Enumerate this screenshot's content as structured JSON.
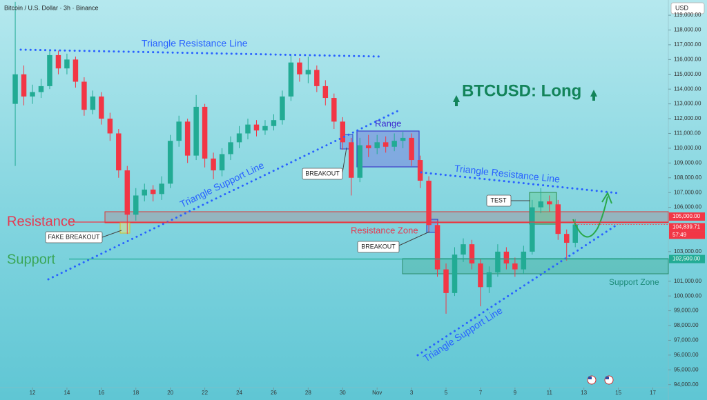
{
  "chart_data": {
    "type": "candlestick",
    "labels": {
      "header": "Bitcoin / U.S. Dollar · 3h · Binance",
      "usd": "USD",
      "title": "BTCUSD: Long",
      "resistance_line_1": "Triangle Resistance Line",
      "support_line_1": "Triangle Support Line",
      "resistance": "Resistance",
      "support": "Support",
      "fake_breakout": "FAKE BREAKOUT",
      "breakout_1": "BREAKOUT",
      "range": "Range",
      "resistance_line_2": "Triangle Resistance Line",
      "test": "TEST",
      "resistance_zone": "Resistance Zone",
      "breakout_2": "BREAKOUT",
      "support_line_2": "Triangle Support Line",
      "support_zone": "Support Zone"
    },
    "up_color": "#22ab94",
    "down_color": "#f23645",
    "grid": false,
    "xlim": [
      -1.884,
      36.9
    ],
    "ylim": [
      93800,
      120030
    ],
    "xticks": [
      {
        "value": 0,
        "label": "12"
      },
      {
        "value": 2,
        "label": "14"
      },
      {
        "value": 4,
        "label": "16"
      },
      {
        "value": 6,
        "label": "18"
      },
      {
        "value": 8,
        "label": "20"
      },
      {
        "value": 10,
        "label": "22"
      },
      {
        "value": 12,
        "label": "24"
      },
      {
        "value": 14,
        "label": "26"
      },
      {
        "value": 16,
        "label": "28"
      },
      {
        "value": 18,
        "label": "30"
      },
      {
        "value": 20,
        "label": "Nov"
      },
      {
        "value": 22,
        "label": "3"
      },
      {
        "value": 24,
        "label": "5"
      },
      {
        "value": 26,
        "label": "7"
      },
      {
        "value": 28,
        "label": "9"
      },
      {
        "value": 30,
        "label": "11"
      },
      {
        "value": 32,
        "label": "13"
      },
      {
        "value": 34,
        "label": "15"
      },
      {
        "value": 36,
        "label": "17"
      }
    ],
    "yticks": [
      {
        "value": 94000,
        "label": "94,000.00"
      },
      {
        "value": 95000,
        "label": "95,000.00"
      },
      {
        "value": 96000,
        "label": "96,000.00"
      },
      {
        "value": 97000,
        "label": "97,000.00"
      },
      {
        "value": 98000,
        "label": "98,000.00"
      },
      {
        "value": 99000,
        "label": "99,000.00"
      },
      {
        "value": 100000,
        "label": "100,000.00"
      },
      {
        "value": 101000,
        "label": "101,000.00"
      },
      {
        "value": 103000,
        "label": "103,000.00"
      },
      {
        "value": 106000,
        "label": "106,000.00"
      },
      {
        "value": 107000,
        "label": "107,000.00"
      },
      {
        "value": 108000,
        "label": "108,000.00"
      },
      {
        "value": 109000,
        "label": "109,000.00"
      },
      {
        "value": 110000,
        "label": "110,000.00"
      },
      {
        "value": 111000,
        "label": "111,000.00"
      },
      {
        "value": 112000,
        "label": "112,000.00"
      },
      {
        "value": 113000,
        "label": "113,000.00"
      },
      {
        "value": 114000,
        "label": "114,000.00"
      },
      {
        "value": 115000,
        "label": "115,000.00"
      },
      {
        "value": 116000,
        "label": "116,000.00"
      },
      {
        "value": 117000,
        "label": "117,000.00"
      },
      {
        "value": 118000,
        "label": "118,000.00"
      },
      {
        "value": 119000,
        "label": "119,000.00"
      }
    ],
    "price_tags": [
      {
        "value": 105000,
        "label": "105,000.00",
        "color": "#f23645"
      },
      {
        "value": 104839.71,
        "label": "104,839.71",
        "color": "#f23645"
      },
      {
        "value": 102500,
        "label": "102,500.00",
        "color": "#22ab94"
      }
    ],
    "countdown": "57:49",
    "x": [
      -1.0,
      -0.5,
      0,
      0.5,
      1.0,
      1.5,
      2.0,
      2.5,
      3.0,
      3.5,
      4.0,
      4.5,
      5.0,
      5.5,
      6.0,
      6.5,
      7.0,
      7.5,
      8.0,
      8.5,
      9.0,
      9.5,
      10.0,
      10.5,
      11.0,
      11.5,
      12.0,
      12.5,
      13.0,
      13.5,
      14.0,
      14.5,
      15.0,
      15.5,
      16.0,
      16.5,
      17.0,
      17.5,
      18.0,
      18.5,
      19.0,
      19.5,
      20.0,
      20.5,
      21.0,
      21.5,
      22.0,
      22.5,
      23.0,
      23.5,
      24.0,
      24.5,
      25.0,
      25.5,
      26.0,
      26.5,
      27.0,
      27.5,
      28.0,
      28.5,
      29.0,
      29.5,
      30.0,
      30.5,
      31.0,
      31.5
    ],
    "open": [
      113000,
      115000,
      113500,
      113800,
      114200,
      116300,
      115400,
      116000,
      114500,
      112600,
      113500,
      112000,
      111000,
      108500,
      105500,
      106800,
      107200,
      106900,
      107600,
      110500,
      111800,
      109500,
      112800,
      109300,
      108500,
      109600,
      110400,
      111000,
      111600,
      111200,
      111500,
      111900,
      113500,
      115800,
      115000,
      115300,
      114200,
      113400,
      111800,
      110400,
      108000,
      110200,
      110000,
      110400,
      110100,
      110500,
      110700,
      109200,
      107800,
      104800,
      101800,
      100200,
      102800,
      103500,
      102200,
      100600,
      101600,
      103000,
      102200,
      101800,
      103000,
      106000,
      106400,
      106200,
      104200,
      103600
    ],
    "high": [
      119900,
      115600,
      114300,
      114700,
      116700,
      116600,
      116400,
      116200,
      114800,
      113900,
      113800,
      112400,
      111300,
      108800,
      107300,
      107600,
      107500,
      108100,
      110900,
      112200,
      112000,
      113600,
      113000,
      109700,
      110000,
      110800,
      111500,
      112000,
      111900,
      111900,
      112300,
      113900,
      116300,
      116100,
      116200,
      115600,
      114600,
      113700,
      112100,
      110700,
      110700,
      110900,
      110900,
      110800,
      111000,
      111100,
      111000,
      109500,
      108100,
      105100,
      102200,
      103300,
      103900,
      103800,
      102500,
      102000,
      103500,
      103300,
      102600,
      103400,
      106500,
      107300,
      106800,
      106500,
      104500,
      105200
    ],
    "low": [
      108800,
      112900,
      113000,
      113400,
      114000,
      115000,
      115000,
      114100,
      112200,
      112300,
      111600,
      110500,
      108000,
      104200,
      105100,
      106400,
      106400,
      106500,
      107300,
      110100,
      109000,
      109200,
      108700,
      107900,
      108100,
      109200,
      110000,
      110600,
      110800,
      110900,
      111200,
      111600,
      113200,
      114500,
      114400,
      113800,
      112900,
      111300,
      109900,
      106800,
      107700,
      109400,
      109600,
      109700,
      109800,
      110000,
      108800,
      107300,
      104300,
      101300,
      98800,
      100000,
      102300,
      101800,
      99300,
      100200,
      101300,
      101800,
      101300,
      101500,
      102800,
      105600,
      105700,
      103800,
      102400,
      103300
    ],
    "close": [
      115000,
      113500,
      113800,
      114200,
      116300,
      115400,
      116000,
      114500,
      112600,
      113500,
      112000,
      111000,
      108500,
      105500,
      106800,
      107200,
      106900,
      107600,
      110500,
      111800,
      109500,
      112800,
      109300,
      108500,
      109600,
      110400,
      111000,
      111600,
      111200,
      111500,
      111900,
      113500,
      115800,
      115000,
      115300,
      114200,
      113400,
      111800,
      110400,
      108000,
      110200,
      110000,
      110400,
      110100,
      110500,
      110700,
      109200,
      107800,
      104800,
      101800,
      100200,
      102800,
      103500,
      102200,
      100600,
      101600,
      103000,
      102200,
      101800,
      103000,
      106000,
      106400,
      106200,
      104200,
      103600,
      104839.71
    ]
  }
}
